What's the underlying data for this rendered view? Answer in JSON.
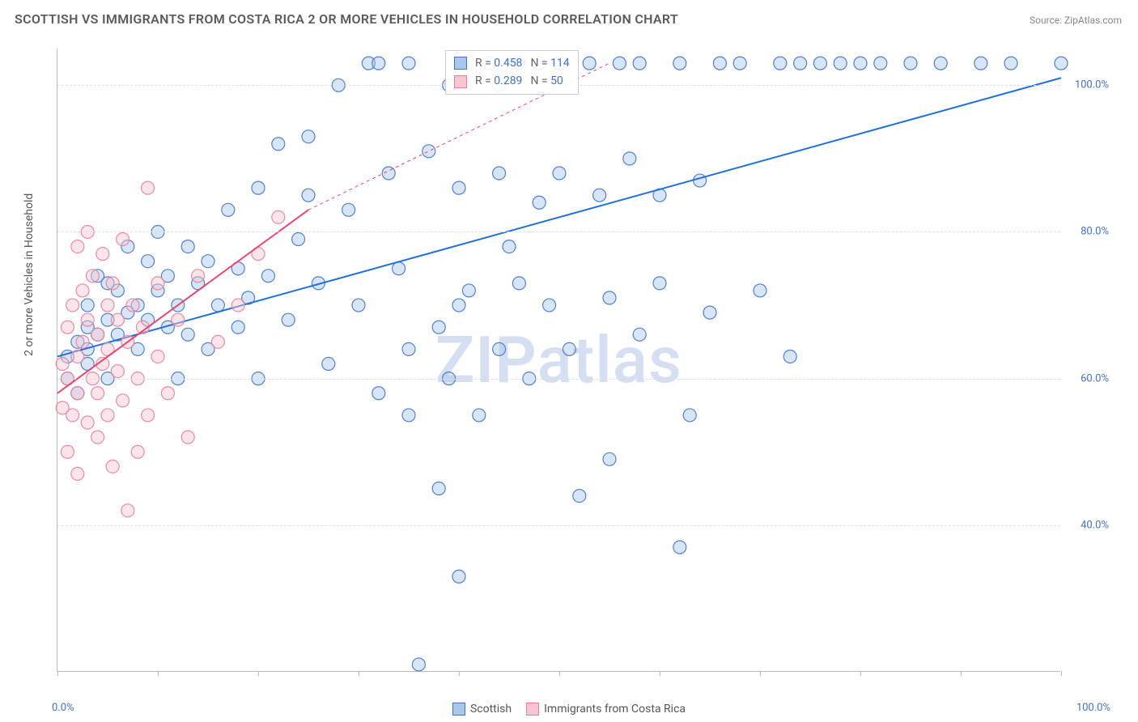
{
  "title": "SCOTTISH VS IMMIGRANTS FROM COSTA RICA 2 OR MORE VEHICLES IN HOUSEHOLD CORRELATION CHART",
  "source": "Source: ZipAtlas.com",
  "watermark": "ZIPatlas",
  "ylabel": "2 or more Vehicles in Household",
  "chart": {
    "type": "scatter",
    "xlim": [
      0,
      100
    ],
    "ylim": [
      20,
      105
    ],
    "ytick_values": [
      40,
      60,
      80,
      100
    ],
    "ytick_labels": [
      "40.0%",
      "60.0%",
      "80.0%",
      "100.0%"
    ],
    "xtick_values": [
      0,
      10,
      20,
      30,
      40,
      50,
      60,
      70,
      80,
      90,
      100
    ],
    "xaxis_label_left": "0.0%",
    "xaxis_label_right": "100.0%",
    "background_color": "#ffffff",
    "grid_color": "#dddddd",
    "axis_color": "#bbbbbb",
    "tick_label_color": "#4472c4",
    "marker_radius": 8,
    "series": [
      {
        "key": "scottish",
        "label": "Scottish",
        "fill": "#a7c7ed",
        "stroke": "#4472c4",
        "r": 0.458,
        "n": 114,
        "trend": {
          "x1": 0,
          "y1": 63,
          "x2": 100,
          "y2": 101,
          "solid_until_x": 100,
          "color": "#1f6fd8"
        },
        "points": [
          [
            1,
            60
          ],
          [
            1,
            63
          ],
          [
            2,
            65
          ],
          [
            2,
            58
          ],
          [
            3,
            67
          ],
          [
            3,
            62
          ],
          [
            3,
            70
          ],
          [
            3,
            64
          ],
          [
            4,
            66
          ],
          [
            4,
            74
          ],
          [
            5,
            68
          ],
          [
            5,
            60
          ],
          [
            5,
            73
          ],
          [
            6,
            72
          ],
          [
            6,
            66
          ],
          [
            7,
            69
          ],
          [
            7,
            78
          ],
          [
            8,
            70
          ],
          [
            8,
            64
          ],
          [
            9,
            76
          ],
          [
            9,
            68
          ],
          [
            10,
            72
          ],
          [
            10,
            80
          ],
          [
            11,
            67
          ],
          [
            11,
            74
          ],
          [
            12,
            70
          ],
          [
            12,
            60
          ],
          [
            13,
            78
          ],
          [
            13,
            66
          ],
          [
            14,
            73
          ],
          [
            15,
            76
          ],
          [
            15,
            64
          ],
          [
            16,
            70
          ],
          [
            17,
            83
          ],
          [
            18,
            67
          ],
          [
            18,
            75
          ],
          [
            19,
            71
          ],
          [
            20,
            86
          ],
          [
            20,
            60
          ],
          [
            21,
            74
          ],
          [
            22,
            92
          ],
          [
            23,
            68
          ],
          [
            24,
            79
          ],
          [
            25,
            93
          ],
          [
            25,
            85
          ],
          [
            26,
            73
          ],
          [
            27,
            62
          ],
          [
            28,
            100
          ],
          [
            29,
            83
          ],
          [
            30,
            70
          ],
          [
            31,
            103
          ],
          [
            32,
            58
          ],
          [
            32,
            103
          ],
          [
            33,
            88
          ],
          [
            34,
            75
          ],
          [
            35,
            103
          ],
          [
            35,
            64
          ],
          [
            36,
            21
          ],
          [
            37,
            91
          ],
          [
            38,
            45
          ],
          [
            38,
            67
          ],
          [
            39,
            100
          ],
          [
            39,
            60
          ],
          [
            40,
            33
          ],
          [
            40,
            86
          ],
          [
            41,
            72
          ],
          [
            42,
            55
          ],
          [
            43,
            103
          ],
          [
            44,
            88
          ],
          [
            44,
            64
          ],
          [
            45,
            78
          ],
          [
            46,
            73
          ],
          [
            47,
            60
          ],
          [
            48,
            84
          ],
          [
            48,
            103
          ],
          [
            49,
            70
          ],
          [
            50,
            88
          ],
          [
            50,
            103
          ],
          [
            51,
            64
          ],
          [
            52,
            44
          ],
          [
            53,
            103
          ],
          [
            54,
            85
          ],
          [
            55,
            71
          ],
          [
            55,
            49
          ],
          [
            56,
            103
          ],
          [
            57,
            90
          ],
          [
            58,
            66
          ],
          [
            58,
            103
          ],
          [
            60,
            73
          ],
          [
            60,
            85
          ],
          [
            62,
            103
          ],
          [
            62,
            37
          ],
          [
            63,
            55
          ],
          [
            64,
            87
          ],
          [
            65,
            69
          ],
          [
            66,
            103
          ],
          [
            68,
            103
          ],
          [
            70,
            72
          ],
          [
            72,
            103
          ],
          [
            73,
            63
          ],
          [
            74,
            103
          ],
          [
            76,
            103
          ],
          [
            78,
            103
          ],
          [
            80,
            103
          ],
          [
            82,
            103
          ],
          [
            85,
            103
          ],
          [
            88,
            103
          ],
          [
            92,
            103
          ],
          [
            95,
            103
          ],
          [
            100,
            103
          ],
          [
            44,
            100
          ],
          [
            46,
            103
          ],
          [
            40,
            70
          ],
          [
            35,
            55
          ]
        ]
      },
      {
        "key": "costa_rica",
        "label": "Immigrants from Costa Rica",
        "fill": "#f7c6d0",
        "stroke": "#e77f9a",
        "r": 0.289,
        "n": 50,
        "trend": {
          "x1": 0,
          "y1": 58,
          "x2": 25,
          "y2": 83,
          "proj_x2": 55,
          "proj_y2": 103,
          "color": "#e6476f"
        },
        "points": [
          [
            0.5,
            56
          ],
          [
            0.5,
            62
          ],
          [
            1,
            50
          ],
          [
            1,
            67
          ],
          [
            1,
            60
          ],
          [
            1.5,
            70
          ],
          [
            1.5,
            55
          ],
          [
            2,
            78
          ],
          [
            2,
            63
          ],
          [
            2,
            47
          ],
          [
            2,
            58
          ],
          [
            2.5,
            72
          ],
          [
            2.5,
            65
          ],
          [
            3,
            80
          ],
          [
            3,
            54
          ],
          [
            3,
            68
          ],
          [
            3.5,
            60
          ],
          [
            3.5,
            74
          ],
          [
            4,
            52
          ],
          [
            4,
            66
          ],
          [
            4,
            58
          ],
          [
            4.5,
            77
          ],
          [
            4.5,
            62
          ],
          [
            5,
            70
          ],
          [
            5,
            55
          ],
          [
            5,
            64
          ],
          [
            5.5,
            48
          ],
          [
            5.5,
            73
          ],
          [
            6,
            61
          ],
          [
            6,
            68
          ],
          [
            6.5,
            57
          ],
          [
            6.5,
            79
          ],
          [
            7,
            42
          ],
          [
            7,
            65
          ],
          [
            7.5,
            70
          ],
          [
            8,
            60
          ],
          [
            8,
            50
          ],
          [
            8.5,
            67
          ],
          [
            9,
            55
          ],
          [
            9,
            86
          ],
          [
            10,
            63
          ],
          [
            10,
            73
          ],
          [
            11,
            58
          ],
          [
            12,
            68
          ],
          [
            13,
            52
          ],
          [
            14,
            74
          ],
          [
            16,
            65
          ],
          [
            18,
            70
          ],
          [
            20,
            77
          ],
          [
            22,
            82
          ]
        ]
      }
    ]
  },
  "stats_labels": {
    "r": "R =",
    "n": "N ="
  },
  "legend_bottom": [
    {
      "label": "Scottish",
      "fill": "#a7c7ed",
      "stroke": "#4472c4"
    },
    {
      "label": "Immigrants from Costa Rica",
      "fill": "#f7c6d0",
      "stroke": "#e77f9a"
    }
  ]
}
